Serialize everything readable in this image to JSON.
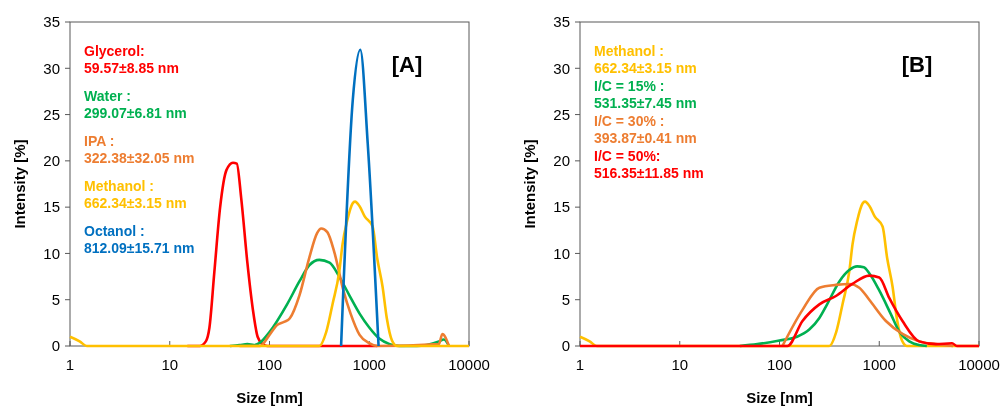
{
  "chart_data": [
    {
      "type": "line",
      "title": "[A]",
      "xlabel": "Size [nm]",
      "ylabel": "Intensity [%]",
      "log": "x",
      "xlim": [
        1,
        10000
      ],
      "xticks": [
        1,
        10,
        100,
        1000,
        10000
      ],
      "ylim": [
        0,
        35
      ],
      "yticks": [
        0,
        5,
        10,
        15,
        20,
        25,
        30,
        35
      ],
      "grid": false,
      "legend": "top left",
      "marker": "none",
      "line_style": "solid",
      "series": [
        {
          "name": "Glycerol:\n59.57±8.85 nm",
          "color": "#ff0000",
          "x": [
            15,
            20,
            23,
            25,
            28,
            32,
            37,
            43,
            47,
            52,
            60,
            68,
            76,
            85,
            95,
            1200
          ],
          "values": [
            0,
            0,
            0.5,
            2,
            8,
            15,
            19,
            19.8,
            19.7,
            16,
            9,
            4,
            1,
            0.2,
            0,
            0
          ]
        },
        {
          "name": "Water :\n299.07±6.81 nm",
          "color": "#00b050",
          "x": [
            40,
            50,
            60,
            70,
            79,
            100,
            150,
            200,
            250,
            316,
            400,
            500,
            630,
            800,
            1000,
            1260,
            1600,
            2000,
            3000,
            5000,
            5600,
            6300
          ],
          "values": [
            0,
            0.1,
            0.2,
            0.1,
            0.3,
            1.5,
            4.5,
            7,
            8.7,
            9.3,
            9,
            7.5,
            5.5,
            3.5,
            2,
            0.8,
            0.2,
            0,
            0,
            0.5,
            0.7,
            0
          ]
        },
        {
          "name": "IPA :\n322.38±32.05 nm",
          "color": "#ed7d31",
          "x": [
            50,
            80,
            100,
            120,
            140,
            160,
            200,
            250,
            300,
            330,
            380,
            450,
            550,
            650,
            800,
            1000,
            1200,
            5000,
            5400,
            6300
          ],
          "values": [
            0,
            0,
            1.2,
            2.3,
            2.6,
            3,
            5.5,
            9.5,
            12.2,
            12.7,
            12.3,
            10,
            6,
            3.5,
            1.2,
            0.3,
            0,
            0.2,
            1.3,
            0
          ]
        },
        {
          "name": "Methanol :\n662.34±3.15 nm",
          "color": "#ffc000",
          "x": [
            1,
            1.25,
            1.47,
            316,
            370,
            430,
            500,
            540,
            600,
            680,
            720,
            800,
            900,
            1080,
            1200,
            1360,
            1500,
            1690,
            1900,
            10000
          ],
          "values": [
            1,
            0.5,
            0,
            0,
            1.5,
            4.6,
            8,
            11,
            13.5,
            15.4,
            15.6,
            15.1,
            14,
            12.9,
            9.5,
            6.4,
            3,
            0.6,
            0,
            0
          ]
        },
        {
          "name": "Octanol :\n812.09±15.71 nm",
          "color": "#0070c0",
          "x": [
            522,
            684,
            813,
            965,
            1240
          ],
          "values": [
            0,
            26.6,
            32,
            21.9,
            0
          ]
        }
      ]
    },
    {
      "type": "line",
      "title": "[B]",
      "xlabel": "Size [nm]",
      "ylabel": "Intensity [%]",
      "log": "x",
      "xlim": [
        1,
        10000
      ],
      "xticks": [
        1,
        10,
        100,
        1000,
        10000
      ],
      "ylim": [
        0,
        35
      ],
      "yticks": [
        0,
        5,
        10,
        15,
        20,
        25,
        30,
        35
      ],
      "grid": false,
      "legend": "top left",
      "marker": "none",
      "line_style": "solid",
      "series": [
        {
          "name": "Methanol :\n662.34±3.15 nm",
          "color": "#ffc000",
          "x": [
            1,
            1.25,
            1.47,
            316,
            370,
            430,
            500,
            540,
            600,
            680,
            720,
            800,
            900,
            1080,
            1200,
            1360,
            1500,
            1690,
            1900,
            10000
          ],
          "values": [
            1,
            0.5,
            0,
            0,
            1.5,
            4.6,
            8,
            11,
            13.5,
            15.4,
            15.6,
            15.1,
            14,
            12.9,
            9.5,
            6.4,
            3,
            0.6,
            0,
            0
          ]
        },
        {
          "name": "I/C = 15% :\n531.35±7.45 nm",
          "color": "#00b050",
          "x": [
            40,
            60,
            100,
            150,
            200,
            250,
            300,
            400,
            500,
            600,
            700,
            800,
            1000,
            1300,
            1600,
            2000,
            2500,
            3000
          ],
          "values": [
            0,
            0.2,
            0.6,
            1,
            1.8,
            3,
            4.5,
            7,
            8.2,
            8.6,
            8.5,
            7.8,
            6,
            3.5,
            1.5,
            0.5,
            0.1,
            0
          ]
        },
        {
          "name": "I/C = 30% :\n393.87±0.41 nm",
          "color": "#ed7d31",
          "x": [
            107,
            170,
            251,
            368,
            500,
            631,
            794,
            1166,
            1710,
            2512,
            3700,
            5500
          ],
          "values": [
            0,
            3.9,
            6.3,
            6.6,
            6.7,
            6.3,
            5,
            2.7,
            1.3,
            0.5,
            0.2,
            0
          ]
        },
        {
          "name": "I/C = 50%:\n516.35±11.85 nm",
          "color": "#ff0000",
          "x": [
            1,
            120,
            170,
            251,
            368,
            537,
            794,
            1000,
            1259,
            1710,
            2512,
            3700,
            5370,
            6000,
            10000
          ],
          "values": [
            0,
            0,
            2.7,
            4.5,
            5.4,
            6.7,
            7.6,
            7.4,
            5.2,
            2.7,
            0.5,
            0.2,
            0.3,
            0,
            0
          ]
        }
      ]
    }
  ]
}
